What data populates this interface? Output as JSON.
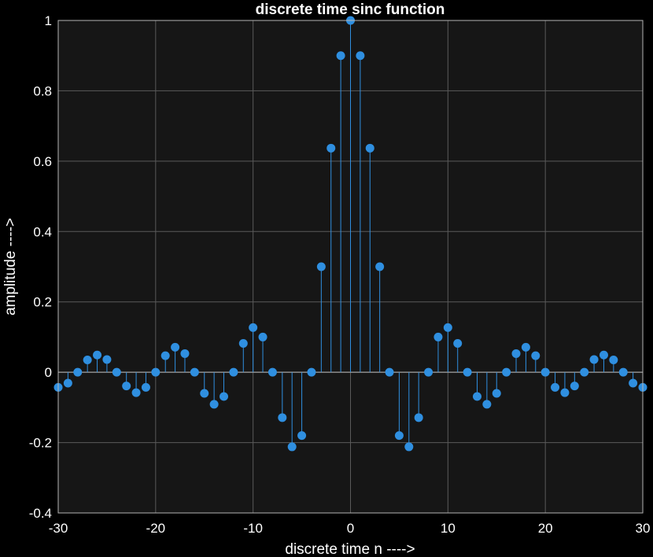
{
  "chart_data": {
    "type": "stem",
    "title": "discrete time sinc function",
    "xlabel": "discrete time n ---->",
    "ylabel": "amplitude ---->",
    "xlim": [
      -30,
      30
    ],
    "ylim": [
      -0.4,
      1
    ],
    "xticks": [
      -30,
      -20,
      -10,
      0,
      10,
      20,
      30
    ],
    "xtick_labels": [
      "-30",
      "-20",
      "-10",
      "0",
      "10",
      "20",
      "30"
    ],
    "yticks": [
      -0.4,
      -0.2,
      0,
      0.2,
      0.4,
      0.6,
      0.8,
      1
    ],
    "ytick_labels": [
      "-0.4",
      "-0.2",
      "0",
      "0.2",
      "0.4",
      "0.6",
      "0.8",
      "1"
    ],
    "grid": true,
    "series": [
      {
        "x": [
          -30,
          -29,
          -28,
          -27,
          -26,
          -25,
          -24,
          -23,
          -22,
          -21,
          -20,
          -19,
          -18,
          -17,
          -16,
          -15,
          -14,
          -13,
          -12,
          -11,
          -10,
          -9,
          -8,
          -7,
          -6,
          -5,
          -4,
          -3,
          -2,
          -1,
          0,
          1,
          2,
          3,
          4,
          5,
          6,
          7,
          8,
          9,
          10,
          11,
          12,
          13,
          14,
          15,
          16,
          17,
          18,
          19,
          20,
          21,
          22,
          23,
          24,
          25,
          26,
          27,
          28,
          29,
          30
        ],
        "y": [
          -0.043,
          -0.031,
          0,
          0.035,
          0.049,
          0.036,
          0,
          -0.039,
          -0.058,
          -0.043,
          0,
          0.047,
          0.071,
          0.053,
          0,
          -0.06,
          -0.091,
          -0.069,
          0,
          0.082,
          0.127,
          0.1,
          0,
          -0.129,
          -0.212,
          -0.18,
          0,
          0.3,
          0.637,
          0.9,
          1,
          0.9,
          0.637,
          0.3,
          0,
          -0.18,
          -0.212,
          -0.129,
          0,
          0.1,
          0.127,
          0.082,
          0,
          -0.069,
          -0.091,
          -0.06,
          0,
          0.053,
          0.071,
          0.047,
          0,
          -0.043,
          -0.058,
          -0.039,
          0,
          0.036,
          0.049,
          0.035,
          0,
          -0.031,
          -0.043
        ]
      }
    ]
  },
  "colors": {
    "figure_bg": "#000000",
    "axes_bg": "#161616",
    "grid": "#5a5a5a",
    "axis_line": "#b4b4b4",
    "series": "#2f8fe0",
    "text": "#ffffff"
  }
}
